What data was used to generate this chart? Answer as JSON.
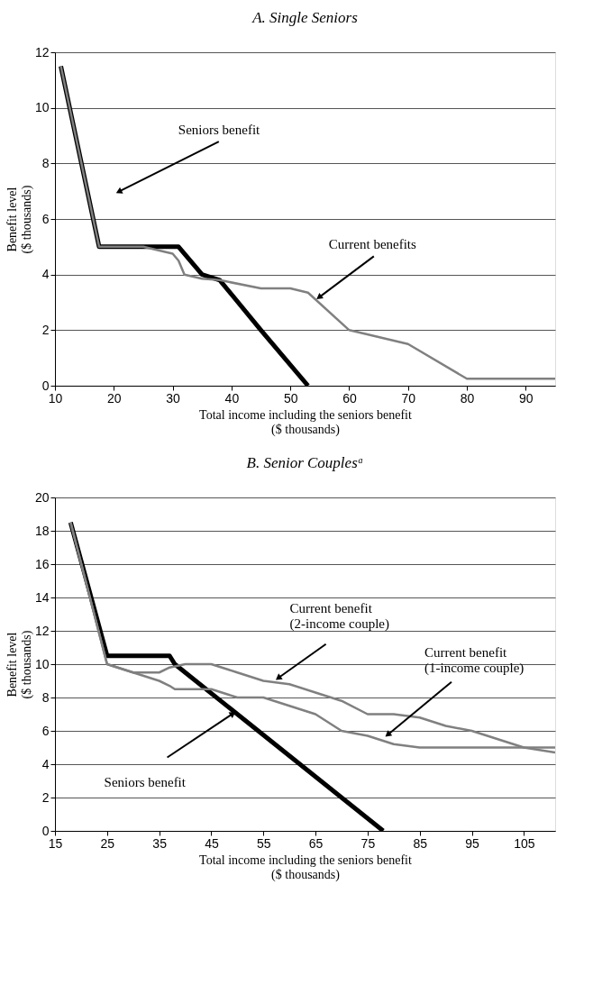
{
  "chart_data": [
    {
      "type": "line",
      "title": "A. Single Seniors",
      "xlabel": "Total income including the seniors benefit\n($ thousands)",
      "ylabel": "Benefit level\n($ thousands)",
      "xlim": [
        10,
        95
      ],
      "xticks": [
        10,
        20,
        30,
        40,
        50,
        60,
        70,
        80,
        90
      ],
      "ylim": [
        0,
        12
      ],
      "yticks": [
        0,
        2,
        4,
        6,
        8,
        10,
        12
      ],
      "grid": "y",
      "line_style": "solid",
      "marker": "none",
      "series": [
        {
          "color": "#000000",
          "x": [
            11,
            17.5,
            31,
            35,
            38,
            45,
            53
          ],
          "values": [
            11.5,
            5,
            5,
            4,
            3.8,
            2,
            0
          ]
        },
        {
          "color": "#808080",
          "x": [
            11,
            17.5,
            25,
            30,
            31,
            32,
            35,
            38,
            45,
            50,
            53,
            60,
            70,
            80,
            95
          ],
          "values": [
            11.5,
            5,
            5,
            4.75,
            4.5,
            4,
            3.85,
            3.8,
            3.5,
            3.5,
            3.35,
            2,
            1.5,
            0.25,
            0.25
          ]
        }
      ],
      "annotations": [
        {
          "text": "Seniors benefit",
          "x": 21,
          "y": 7
        },
        {
          "text": "Current benefits",
          "x": 55,
          "y": 3.2
        }
      ]
    },
    {
      "type": "line",
      "title": "B. Senior Couplesᵃ",
      "xlabel": "Total income including the seniors benefit\n($ thousands)",
      "ylabel": "Benefit level\n($ thousands)",
      "xlim": [
        15,
        111
      ],
      "xticks": [
        15,
        25,
        35,
        45,
        55,
        65,
        75,
        85,
        95,
        105
      ],
      "ylim": [
        0,
        20
      ],
      "yticks": [
        0,
        2,
        4,
        6,
        8,
        10,
        12,
        14,
        16,
        18,
        20
      ],
      "grid": "y",
      "line_style": "solid",
      "marker": "none",
      "series": [
        {
          "color": "#000000",
          "x": [
            18,
            25,
            37,
            38,
            78
          ],
          "values": [
            18.5,
            10.5,
            10.5,
            10,
            0
          ]
        },
        {
          "color": "#808080",
          "x": [
            18,
            25,
            30,
            35,
            37,
            40,
            45,
            50,
            55,
            60,
            65,
            70,
            75,
            80,
            85,
            90,
            95,
            105,
            111
          ],
          "values": [
            18.5,
            10,
            9.5,
            9.5,
            9.8,
            10,
            10,
            9.5,
            9,
            8.8,
            8.3,
            7.8,
            7,
            7,
            6.8,
            6.3,
            6,
            5,
            4.7
          ]
        },
        {
          "color": "#808080",
          "x": [
            18,
            25,
            30,
            35,
            37,
            38,
            45,
            50,
            55,
            60,
            65,
            70,
            75,
            80,
            85,
            95,
            111
          ],
          "values": [
            18.5,
            10,
            9.5,
            9,
            8.7,
            8.5,
            8.5,
            8,
            8,
            7.5,
            7,
            6,
            5.7,
            5.2,
            5,
            5,
            5
          ]
        }
      ],
      "annotations": [
        {
          "text": "Current benefit\n(2-income couple)",
          "x": 58,
          "y": 9.2
        },
        {
          "text": "Current benefit\n(1-income couple)",
          "x": 79,
          "y": 5.8
        },
        {
          "text": "Seniors benefit",
          "x": 49,
          "y": 7
        }
      ]
    }
  ]
}
